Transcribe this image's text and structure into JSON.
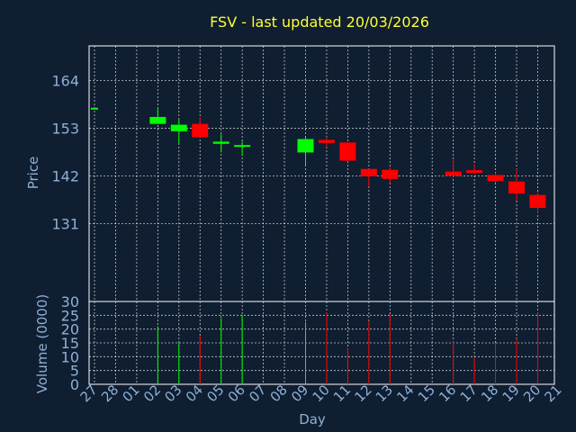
{
  "chart_data": {
    "type": "candlestick",
    "title": "FSV - last updated 20/03/2026",
    "xlabel": "Day",
    "x_ticks": [
      "27",
      "28",
      "01",
      "02",
      "03",
      "04",
      "05",
      "06",
      "07",
      "08",
      "09",
      "10",
      "11",
      "12",
      "13",
      "14",
      "15",
      "16",
      "17",
      "18",
      "19",
      "20",
      "21"
    ],
    "price": {
      "ylabel": "Price",
      "ylim": [
        113,
        172
      ],
      "yticks": [
        131,
        142,
        153,
        164
      ],
      "grid": true
    },
    "volume": {
      "ylabel": "Volume (0000)",
      "ylim": [
        0,
        30
      ],
      "yticks": [
        0,
        5,
        10,
        15,
        20,
        25,
        30
      ],
      "grid": true
    },
    "colors": {
      "up": "#00ff00",
      "down": "#ff0000",
      "title": "#ffff33",
      "axis": "#8fb0d8",
      "background": "#0f1e30"
    },
    "candles": [
      {
        "day": "27",
        "open": 157.5,
        "close": 157.5,
        "high": 157.5,
        "low": 157.5,
        "volume": 0
      },
      {
        "day": "02",
        "open": 154.0,
        "close": 155.6,
        "high": 157.6,
        "low": 154.0,
        "volume": 21
      },
      {
        "day": "03",
        "open": 152.3,
        "close": 153.8,
        "high": 155.0,
        "low": 149.4,
        "volume": 15
      },
      {
        "day": "04",
        "open": 154.0,
        "close": 150.9,
        "high": 155.5,
        "low": 150.9,
        "volume": 17.5
      },
      {
        "day": "05",
        "open": 149.4,
        "close": 149.9,
        "high": 151.6,
        "low": 147.4,
        "volume": 24
      },
      {
        "day": "06",
        "open": 148.5,
        "close": 148.9,
        "high": 149.9,
        "low": 146.6,
        "volume": 25
      },
      {
        "day": "09",
        "open": 147.4,
        "close": 150.5,
        "high": 150.8,
        "low": 144.5,
        "volume": 22.5
      },
      {
        "day": "10",
        "open": 150.3,
        "close": 149.6,
        "high": 151.0,
        "low": 148.6,
        "volume": 26
      },
      {
        "day": "11",
        "open": 149.7,
        "close": 145.5,
        "high": 149.7,
        "low": 145.3,
        "volume": 13
      },
      {
        "day": "12",
        "open": 143.6,
        "close": 141.9,
        "high": 143.6,
        "low": 139.5,
        "volume": 23
      },
      {
        "day": "13",
        "open": 143.4,
        "close": 141.3,
        "high": 144.0,
        "low": 140.4,
        "volume": 25.5
      },
      {
        "day": "16",
        "open": 143.0,
        "close": 142.0,
        "high": 145.6,
        "low": 141.5,
        "volume": 15.5
      },
      {
        "day": "17",
        "open": 143.3,
        "close": 142.7,
        "high": 144.7,
        "low": 142.3,
        "volume": 10
      },
      {
        "day": "18",
        "open": 142.2,
        "close": 140.8,
        "high": 142.7,
        "low": 140.4,
        "volume": 15
      },
      {
        "day": "19",
        "open": 140.7,
        "close": 137.9,
        "high": 143.6,
        "low": 136.3,
        "volume": 16.5
      },
      {
        "day": "20",
        "open": 137.6,
        "close": 134.6,
        "high": 138.2,
        "low": 133.4,
        "volume": 26
      }
    ]
  }
}
